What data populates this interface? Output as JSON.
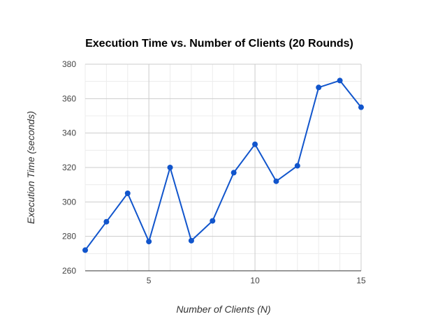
{
  "chart_data": {
    "type": "line",
    "title": "Execution Time vs. Number of Clients (20 Rounds)",
    "xlabel": "Number of Clients (N)",
    "ylabel": "Execution Time (seconds)",
    "x": [
      2,
      3,
      4,
      5,
      6,
      7,
      8,
      9,
      10,
      11,
      12,
      13,
      14,
      15
    ],
    "series": [
      {
        "values": [
          272,
          288.5,
          305,
          277,
          320,
          277.5,
          289,
          317,
          333.5,
          312,
          321,
          366.5,
          370.5,
          355
        ]
      }
    ],
    "xlim": [
      2,
      15
    ],
    "ylim": [
      260,
      380
    ],
    "x_ticks": [
      "5",
      "10",
      "15"
    ],
    "x_tick_values": [
      5,
      10,
      15
    ],
    "y_ticks": [
      "260",
      "280",
      "300",
      "320",
      "340",
      "360",
      "380"
    ],
    "y_tick_values": [
      260,
      280,
      300,
      320,
      340,
      360,
      380
    ],
    "grid": true,
    "line_color": "#1155cc",
    "marker": "circle"
  }
}
